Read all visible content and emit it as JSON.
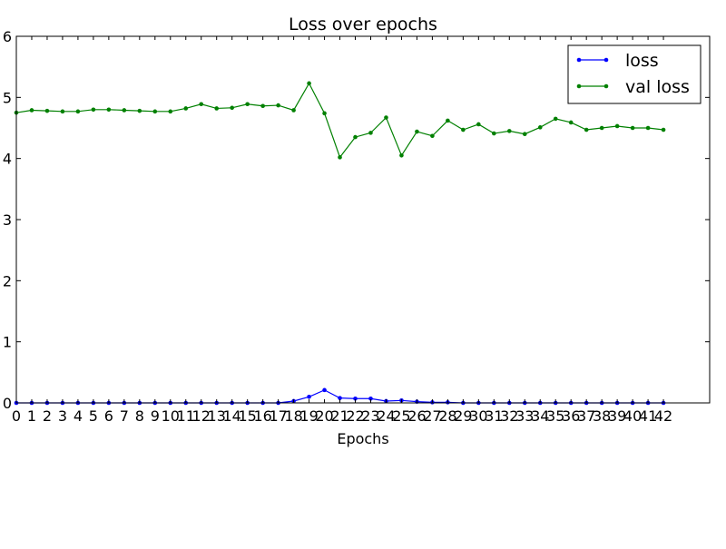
{
  "chart_data": {
    "type": "line",
    "title": "Loss over epochs",
    "xlabel": "Epochs",
    "ylabel": "",
    "xlim": [
      0,
      45
    ],
    "ylim": [
      0,
      6
    ],
    "xticks": [
      0,
      1,
      2,
      3,
      4,
      5,
      6,
      7,
      8,
      9,
      10,
      11,
      12,
      13,
      14,
      15,
      16,
      17,
      18,
      19,
      20,
      21,
      22,
      23,
      24,
      25,
      26,
      27,
      28,
      29,
      30,
      31,
      32,
      33,
      34,
      35,
      36,
      37,
      38,
      39,
      40,
      41,
      42
    ],
    "yticks": [
      0,
      1,
      2,
      3,
      4,
      5,
      6
    ],
    "grid": false,
    "legend_position": "top-right",
    "x": [
      0,
      1,
      2,
      3,
      4,
      5,
      6,
      7,
      8,
      9,
      10,
      11,
      12,
      13,
      14,
      15,
      16,
      17,
      18,
      19,
      20,
      21,
      22,
      23,
      24,
      25,
      26,
      27,
      28,
      29,
      30,
      31,
      32,
      33,
      34,
      35,
      36,
      37,
      38,
      39,
      40,
      41,
      42
    ],
    "series": [
      {
        "name": "loss",
        "color": "#0000ff",
        "values": [
          0,
          0,
          0,
          0,
          0,
          0,
          0,
          0,
          0,
          0,
          0,
          0,
          0,
          0,
          0,
          0,
          0,
          0,
          0.03,
          0.1,
          0.21,
          0.08,
          0.07,
          0.07,
          0.03,
          0.04,
          0.02,
          0.01,
          0.01,
          0,
          0,
          0,
          0,
          0,
          0,
          0,
          0,
          0,
          0,
          0,
          0,
          0,
          0
        ]
      },
      {
        "name": "val loss",
        "color": "#008000",
        "values": [
          4.75,
          4.79,
          4.78,
          4.77,
          4.77,
          4.8,
          4.8,
          4.79,
          4.78,
          4.77,
          4.77,
          4.82,
          4.89,
          4.82,
          4.83,
          4.89,
          4.86,
          4.87,
          4.79,
          5.23,
          4.74,
          4.02,
          4.35,
          4.42,
          4.67,
          4.05,
          4.44,
          4.37,
          4.62,
          4.47,
          4.56,
          4.41,
          4.45,
          4.4,
          4.51,
          4.65,
          4.59,
          4.47,
          4.5,
          4.53,
          4.5,
          4.5,
          4.47
        ]
      }
    ]
  }
}
